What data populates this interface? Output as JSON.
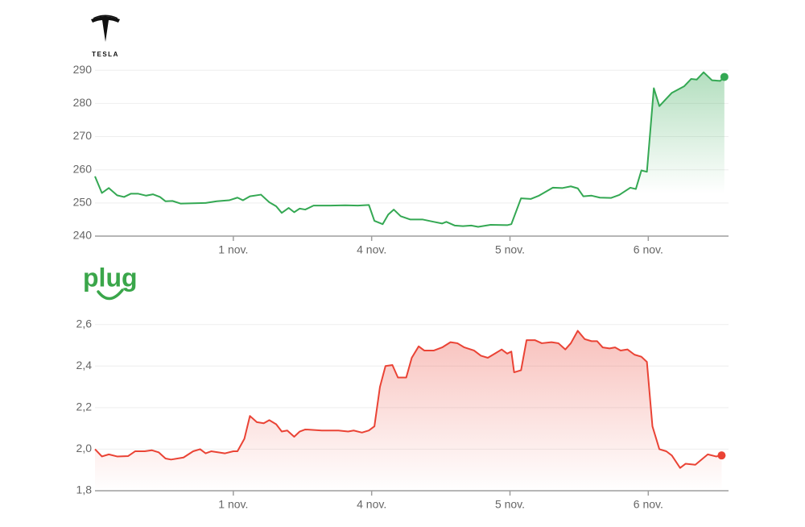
{
  "chart_data": [
    {
      "type": "line",
      "title": "TESLA",
      "color": "#34a853",
      "x": [
        0,
        0.05,
        0.1,
        0.16,
        0.21,
        0.26,
        0.31,
        0.37,
        0.42,
        0.47,
        0.51,
        0.56,
        0.62,
        0.71,
        0.8,
        0.88,
        0.97,
        1.03,
        1.07,
        1.12,
        1.2,
        1.26,
        1.31,
        1.35,
        1.4,
        1.44,
        1.48,
        1.52,
        1.58,
        1.7,
        1.81,
        1.9,
        1.98,
        2.02,
        2.08,
        2.12,
        2.16,
        2.21,
        2.28,
        2.37,
        2.45,
        2.51,
        2.54,
        2.6,
        2.66,
        2.72,
        2.77,
        2.86,
        2.98,
        3.01,
        3.08,
        3.15,
        3.21,
        3.31,
        3.38,
        3.44,
        3.49,
        3.53,
        3.59,
        3.65,
        3.73,
        3.79,
        3.87,
        3.91,
        3.95,
        3.99,
        4.04,
        4.08,
        4.17,
        4.26,
        4.31,
        4.35,
        4.4,
        4.46,
        4.52,
        4.55
      ],
      "values": [
        258,
        253,
        254.5,
        252.3,
        251.8,
        252.8,
        252.8,
        252.2,
        252.6,
        251.8,
        250.5,
        250.6,
        249.8,
        249.9,
        250,
        250.5,
        250.8,
        251.6,
        250.8,
        252,
        252.5,
        250.2,
        249,
        247,
        248.5,
        247.2,
        248.3,
        248,
        249.2,
        249.2,
        249.3,
        249.2,
        249.4,
        244.6,
        243.6,
        246.5,
        248,
        246,
        245,
        245,
        244.3,
        243.8,
        244.3,
        243.2,
        243,
        243.2,
        242.8,
        243.4,
        243.3,
        243.6,
        251.4,
        251.2,
        252.2,
        254.6,
        254.5,
        255,
        254.4,
        252,
        252.2,
        251.6,
        251.5,
        252.4,
        254.6,
        254.2,
        259.8,
        259.4,
        284.6,
        279.2,
        283.2,
        285.2,
        287.4,
        287.2,
        289.4,
        287,
        286.8,
        288
      ],
      "xlim": [
        0,
        4.58
      ],
      "xticks": [
        {
          "value": 1,
          "label": "1 nov."
        },
        {
          "value": 2,
          "label": "4 nov."
        },
        {
          "value": 3,
          "label": "5 nov."
        },
        {
          "value": 4,
          "label": "6 nov."
        }
      ],
      "ylim": [
        240,
        292
      ],
      "yticks": [
        240,
        250,
        260,
        270,
        280,
        290
      ],
      "grid": true
    },
    {
      "type": "line",
      "title": "plug",
      "color": "#ea4335",
      "x": [
        0,
        0.05,
        0.1,
        0.16,
        0.24,
        0.29,
        0.36,
        0.41,
        0.46,
        0.51,
        0.55,
        0.64,
        0.71,
        0.76,
        0.8,
        0.84,
        0.94,
        1.0,
        1.03,
        1.08,
        1.12,
        1.17,
        1.22,
        1.26,
        1.31,
        1.35,
        1.39,
        1.44,
        1.48,
        1.52,
        1.64,
        1.76,
        1.83,
        1.87,
        1.93,
        1.98,
        2.02,
        2.06,
        2.1,
        2.15,
        2.19,
        2.25,
        2.29,
        2.34,
        2.38,
        2.45,
        2.51,
        2.57,
        2.62,
        2.67,
        2.74,
        2.79,
        2.84,
        2.89,
        2.94,
        2.98,
        3.01,
        3.03,
        3.08,
        3.12,
        3.18,
        3.23,
        3.3,
        3.35,
        3.4,
        3.44,
        3.49,
        3.54,
        3.59,
        3.63,
        3.67,
        3.72,
        3.76,
        3.8,
        3.85,
        3.9,
        3.95,
        3.99,
        4.03,
        4.08,
        4.13,
        4.17,
        4.23,
        4.27,
        4.34,
        4.43,
        4.49,
        4.53
      ],
      "values": [
        2.0,
        1.965,
        1.975,
        1.965,
        1.967,
        1.99,
        1.99,
        1.995,
        1.985,
        1.955,
        1.95,
        1.96,
        1.99,
        2.0,
        1.98,
        1.99,
        1.98,
        1.99,
        1.99,
        2.05,
        2.16,
        2.13,
        2.125,
        2.14,
        2.12,
        2.085,
        2.09,
        2.06,
        2.085,
        2.095,
        2.09,
        2.09,
        2.085,
        2.09,
        2.08,
        2.09,
        2.11,
        2.3,
        2.4,
        2.405,
        2.345,
        2.345,
        2.44,
        2.495,
        2.475,
        2.475,
        2.49,
        2.515,
        2.51,
        2.49,
        2.475,
        2.45,
        2.44,
        2.46,
        2.48,
        2.46,
        2.47,
        2.37,
        2.38,
        2.525,
        2.525,
        2.51,
        2.515,
        2.51,
        2.48,
        2.51,
        2.57,
        2.53,
        2.52,
        2.52,
        2.49,
        2.485,
        2.49,
        2.475,
        2.48,
        2.455,
        2.445,
        2.42,
        2.11,
        2.0,
        1.99,
        1.97,
        1.91,
        1.93,
        1.925,
        1.975,
        1.965,
        1.97
      ],
      "xlim": [
        0,
        4.58
      ],
      "xticks": [
        {
          "value": 1,
          "label": "1 nov."
        },
        {
          "value": 2,
          "label": "4 nov."
        },
        {
          "value": 3,
          "label": "5 nov."
        },
        {
          "value": 4,
          "label": "6 nov."
        }
      ],
      "ylim": [
        1.8,
        2.63
      ],
      "yticks": [
        {
          "value": 1.8,
          "label": "1,8"
        },
        {
          "value": 2.0,
          "label": "2,0"
        },
        {
          "value": 2.2,
          "label": "2,2"
        },
        {
          "value": 2.4,
          "label": "2,4"
        },
        {
          "value": 2.6,
          "label": "2,6"
        }
      ],
      "grid": true
    }
  ]
}
